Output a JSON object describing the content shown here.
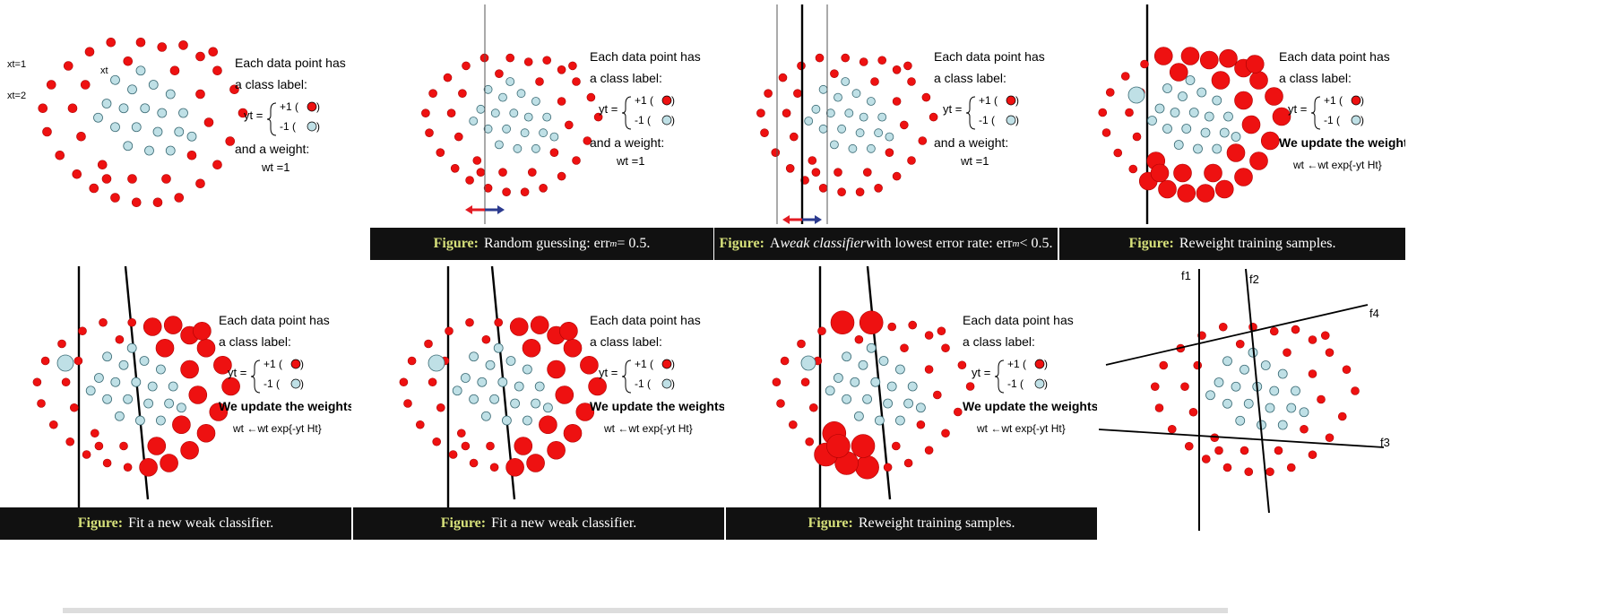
{
  "colors": {
    "positive": "#ee1111",
    "negative": "#bfe0e6",
    "caption_bg": "#111111",
    "caption_label": "#d6e07a",
    "arrow_left": "#e31b23",
    "arrow_right": "#2b3a8f"
  },
  "text": {
    "each_point": "Each data point has",
    "class_label": "a class label:",
    "yt_eq": "yt =",
    "plus_one": "+1 (",
    "minus_one": "-1 (",
    "close_paren": ")",
    "and_weight": "and a weight:",
    "wt_eq1": "wt =1",
    "we_update": "We update the weights:",
    "update_rule": "wt ←wt exp{-yt Ht}",
    "x_t1": "xt=1",
    "x_t2": "xt=2",
    "x_t": "xt",
    "f1": "f1",
    "f2": "f2",
    "f3": "f3",
    "f4": "f4"
  },
  "captions": {
    "figure": "Figure:",
    "p2": "Random guessing: err",
    "p2_tail": " = 0.5.",
    "p3a": "A ",
    "p3b": "weak classifier",
    "p3c": " with lowest error rate: err",
    "p3_tail": " < 0.5.",
    "p4": "Reweight training samples.",
    "p5": "Fit a new weak classifier.",
    "p6": "Fit a new weak classifier.",
    "p7": "Reweight training samples.",
    "sub_m": "m"
  }
}
